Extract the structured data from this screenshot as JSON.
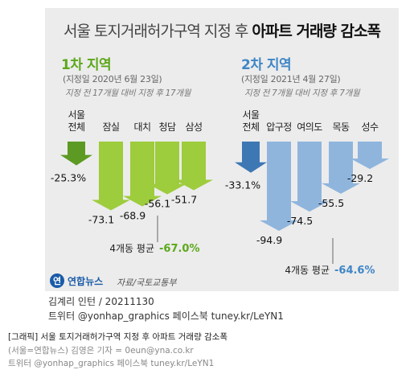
{
  "title_light": "서울 토지거래허가구역 지정 후",
  "title_bold": "아파트 거래량 감소폭",
  "groups": [
    {
      "head": "1차 지역",
      "sub": "(지정일 2020년 6월 23일)",
      "note": "지정 전 17개월 대비 지정 후 17개월",
      "avg_label": "4개동 평균",
      "avg_value": "-67.0%"
    },
    {
      "head": "2차 지역",
      "sub": "(지정일 2021년 4월 27일)",
      "note": "지정 전 7개월 대비 지정 후 7개월",
      "avg_label": "4개동 평균",
      "avg_value": "-64.6%"
    }
  ],
  "chart_data": [
    {
      "type": "bar",
      "title": "1차 지역",
      "categories": [
        "서울 전체",
        "잠실",
        "대치",
        "청담",
        "삼성"
      ],
      "values": [
        -25.3,
        -73.1,
        -68.9,
        -56.1,
        -51.7
      ],
      "value_labels": [
        "-25.3%",
        "-73.1",
        "-68.9",
        "-56.1",
        "-51.7"
      ],
      "colors": {
        "overall": "#5c9a24",
        "areas": "#9dcc3c",
        "accent": "#5ca81a"
      }
    },
    {
      "type": "bar",
      "title": "2차 지역",
      "categories": [
        "서울 전체",
        "압구정",
        "여의도",
        "목동",
        "성수"
      ],
      "values": [
        -33.1,
        -94.9,
        -74.5,
        -55.5,
        -29.2
      ],
      "value_labels": [
        "-33.1%",
        "-94.9",
        "-74.5",
        "-55.5",
        "-29.2"
      ],
      "colors": {
        "overall": "#3d78b4",
        "areas": "#8fb5dd",
        "accent": "#3f86c6"
      }
    }
  ],
  "logo": {
    "mark": "연",
    "text": "연합뉴스"
  },
  "source": "자료/국토교통부",
  "credit_line1": "김계리 인턴 / 20211130",
  "credit_line2": "트위터 @yonhap_graphics 페이스북 tuney.kr/LeYN1",
  "footer": {
    "line1": "[그래픽] 서울 토지거래허가구역 지정 후 아파트 거래량 감소폭",
    "line2": "(서울=연합뉴스) 김영은 기자 = 0eun@yna.co.kr",
    "line3": "트위터 @yonhap_graphics 페이스북 tuney.kr/LeYN1"
  }
}
